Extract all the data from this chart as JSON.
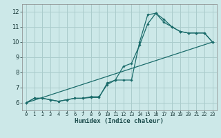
{
  "title": "",
  "xlabel": "Humidex (Indice chaleur)",
  "bg_color": "#cce8e8",
  "grid_color": "#aacccc",
  "line_color": "#1a6b6a",
  "xlim": [
    -0.5,
    23.5
  ],
  "ylim": [
    5.5,
    12.5
  ],
  "xticks": [
    0,
    1,
    2,
    3,
    4,
    5,
    6,
    7,
    8,
    9,
    10,
    11,
    12,
    13,
    14,
    15,
    16,
    17,
    18,
    19,
    20,
    21,
    22,
    23
  ],
  "yticks": [
    6,
    7,
    8,
    9,
    10,
    11,
    12
  ],
  "line1_x": [
    0,
    1,
    2,
    3,
    4,
    5,
    6,
    7,
    8,
    9,
    10,
    11,
    12,
    13,
    14,
    15,
    16,
    17,
    18,
    19,
    20,
    21,
    22,
    23
  ],
  "line1_y": [
    6.0,
    6.3,
    6.3,
    6.2,
    6.1,
    6.2,
    6.3,
    6.3,
    6.4,
    6.4,
    7.2,
    7.5,
    8.4,
    8.6,
    9.8,
    11.2,
    11.9,
    11.5,
    11.0,
    10.7,
    10.6,
    10.6,
    10.6,
    10.0
  ],
  "line2_x": [
    0,
    1,
    2,
    3,
    4,
    5,
    6,
    7,
    8,
    9,
    10,
    11,
    12,
    13,
    14,
    15,
    16,
    17,
    18,
    19,
    20,
    21,
    22,
    23
  ],
  "line2_y": [
    6.0,
    6.3,
    6.3,
    6.2,
    6.1,
    6.2,
    6.3,
    6.3,
    6.35,
    6.35,
    7.3,
    7.5,
    7.5,
    7.5,
    10.0,
    11.8,
    11.9,
    11.3,
    11.0,
    10.7,
    10.6,
    10.6,
    10.6,
    10.0
  ],
  "line3_x": [
    0,
    23
  ],
  "line3_y": [
    6.0,
    10.0
  ]
}
